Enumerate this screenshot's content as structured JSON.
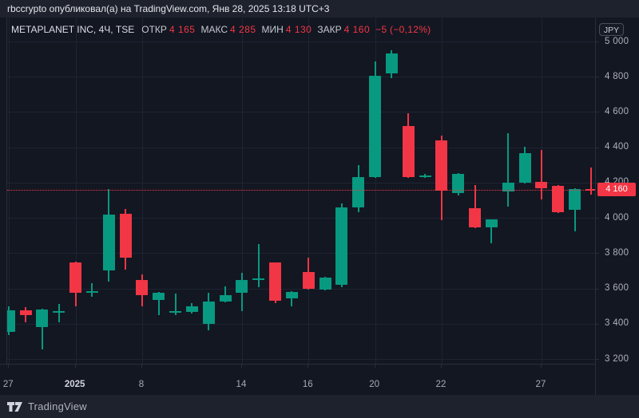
{
  "attribution": {
    "text": "rbccrypto опубликовал(а) на TradingView.com, Янв 28, 2025 13:18 UTC+3"
  },
  "legend": {
    "symbol": "METAPLANET INC, 4Ч, TSE",
    "items": [
      {
        "label": "ОТКР",
        "value": "4 165"
      },
      {
        "label": "МАКС",
        "value": "4 285"
      },
      {
        "label": "МИН",
        "value": "4 130"
      },
      {
        "label": "ЗАКР",
        "value": "4 160"
      }
    ],
    "change": "−5 (−0,12%)"
  },
  "price_axis": {
    "currency_button": "JPY",
    "labels": [
      "5 000",
      "4 800",
      "4 600",
      "4 400",
      "4 200",
      "4 000",
      "3 800",
      "3 600",
      "3 400",
      "3 200"
    ],
    "current_price_tag": "4 160"
  },
  "time_axis": {
    "labels": [
      {
        "text": "27",
        "candle_index": 0,
        "bold": false
      },
      {
        "text": "2025",
        "candle_index": 4,
        "bold": true
      },
      {
        "text": "8",
        "candle_index": 8,
        "bold": false
      },
      {
        "text": "14",
        "candle_index": 14,
        "bold": false
      },
      {
        "text": "16",
        "candle_index": 18,
        "bold": false
      },
      {
        "text": "20",
        "candle_index": 22,
        "bold": false
      },
      {
        "text": "22",
        "candle_index": 26,
        "bold": false
      },
      {
        "text": "27",
        "candle_index": 32,
        "bold": false
      }
    ]
  },
  "footer": {
    "brand": "TradingView"
  },
  "colors": {
    "background": "#131722",
    "bars": "#1e222d",
    "up": "#089981",
    "down": "#f23645",
    "price_line": "#f23645",
    "grid": "#1e2433",
    "border": "#2a2e39",
    "axis_text": "#aeb1bb"
  },
  "chart_data": {
    "type": "candlestick",
    "title": "METAPLANET INC, 4Ч, TSE",
    "symbol": "METAPLANET INC",
    "interval": "4Ч",
    "exchange": "TSE",
    "currency": "JPY",
    "legend_position": "top-left",
    "grid": true,
    "y_axis": {
      "ticks": [
        5000,
        4800,
        4600,
        4400,
        4200,
        4000,
        3800,
        3600,
        3400,
        3200
      ],
      "range_top": 5136,
      "range_bottom": 3173
    },
    "x_axis_labels": [
      "27",
      "2025",
      "8",
      "14",
      "16",
      "20",
      "22",
      "27"
    ],
    "current_price": 4160,
    "last_bar": {
      "open": 4165,
      "high": 4285,
      "low": 4130,
      "close": 4160,
      "change": -5,
      "change_pct": -0.12
    },
    "candles_ohlc": [
      [
        3355,
        3500,
        3335,
        3475
      ],
      [
        3475,
        3495,
        3410,
        3450
      ],
      [
        3380,
        3485,
        3255,
        3480
      ],
      [
        3470,
        3510,
        3410,
        3473
      ],
      [
        3745,
        3750,
        3500,
        3575
      ],
      [
        3575,
        3630,
        3555,
        3585
      ],
      [
        3700,
        4165,
        3640,
        4020
      ],
      [
        4025,
        4050,
        3705,
        3775
      ],
      [
        3650,
        3680,
        3500,
        3560
      ],
      [
        3535,
        3580,
        3450,
        3575
      ],
      [
        3470,
        3570,
        3450,
        3473
      ],
      [
        3465,
        3515,
        3460,
        3500
      ],
      [
        3400,
        3575,
        3365,
        3525
      ],
      [
        3525,
        3610,
        3520,
        3560
      ],
      [
        3575,
        3690,
        3470,
        3650
      ],
      [
        3650,
        3850,
        3605,
        3656
      ],
      [
        3745,
        3748,
        3515,
        3530
      ],
      [
        3545,
        3585,
        3500,
        3580
      ],
      [
        3695,
        3775,
        3595,
        3600
      ],
      [
        3595,
        3665,
        3590,
        3660
      ],
      [
        3620,
        4080,
        3605,
        4060
      ],
      [
        4060,
        4300,
        4030,
        4230
      ],
      [
        4230,
        4885,
        4225,
        4805
      ],
      [
        4820,
        4950,
        4790,
        4930
      ],
      [
        4520,
        4595,
        4225,
        4230
      ],
      [
        4235,
        4248,
        4226,
        4240
      ],
      [
        4440,
        4465,
        3985,
        4155
      ],
      [
        4140,
        4255,
        4125,
        4250
      ],
      [
        4055,
        4185,
        3940,
        3945
      ],
      [
        3945,
        3992,
        3855,
        3990
      ],
      [
        4150,
        4480,
        4065,
        4200
      ],
      [
        4200,
        4405,
        4195,
        4365
      ],
      [
        4205,
        4385,
        4105,
        4170
      ],
      [
        4180,
        4185,
        4028,
        4030
      ],
      [
        4045,
        4170,
        3925,
        4165
      ],
      [
        4165,
        4285,
        4130,
        4160
      ]
    ]
  }
}
